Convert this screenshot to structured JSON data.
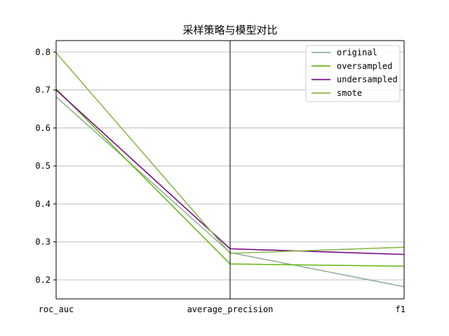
{
  "chart_data": {
    "type": "line",
    "title": "采样策略与模型对比",
    "xlabel": "",
    "ylabel": "",
    "categories": [
      "roc_auc",
      "average_precision",
      "f1"
    ],
    "ylim": [
      0.15,
      0.83
    ],
    "yticks": [
      0.2,
      0.3,
      0.4,
      0.5,
      0.6,
      0.7,
      0.8
    ],
    "ytick_labels": [
      "0.2",
      "0.3",
      "0.4",
      "0.5",
      "0.6",
      "0.7",
      "0.8"
    ],
    "grid": true,
    "legend_position": "top-right",
    "series": [
      {
        "name": "original",
        "color": "#8fb39a",
        "values": [
          0.682,
          0.272,
          0.182
        ]
      },
      {
        "name": "oversampled",
        "color": "#6abb1e",
        "values": [
          0.703,
          0.242,
          0.236
        ]
      },
      {
        "name": "undersampled",
        "color": "#760a84",
        "values": [
          0.7,
          0.282,
          0.267
        ]
      },
      {
        "name": "smote",
        "color": "#8ab94b",
        "values": [
          0.798,
          0.27,
          0.286
        ]
      }
    ]
  }
}
